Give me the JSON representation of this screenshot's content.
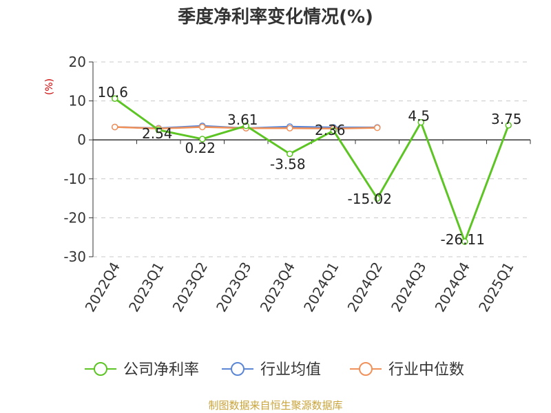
{
  "chart_data": {
    "type": "line",
    "title": "季度净利率变化情况(%)",
    "ylabel": "(%)",
    "xlabel": "",
    "ylim": [
      -30,
      20
    ],
    "yticks": [
      20,
      10,
      0,
      -10,
      -20,
      -30
    ],
    "categories": [
      "2022Q4",
      "2023Q1",
      "2023Q2",
      "2023Q3",
      "2023Q4",
      "2024Q1",
      "2024Q2",
      "2024Q3",
      "2024Q4",
      "2025Q1"
    ],
    "grid": true,
    "legend_position": "bottom",
    "series": [
      {
        "name": "公司净利率",
        "color": "#5cc423",
        "values": [
          10.6,
          2.54,
          0.22,
          3.61,
          -3.58,
          2.36,
          -15.02,
          4.5,
          -26.11,
          3.75
        ],
        "labels": [
          "10.6",
          "2.54",
          "0.22",
          "3.61",
          "-3.58",
          "2.36",
          "-15.02",
          "4.5",
          "-26.11",
          "3.75"
        ]
      },
      {
        "name": "行业均值",
        "color": "#5b86d6",
        "values": [
          3.3,
          3.0,
          3.6,
          3.0,
          3.4,
          3.2,
          3.2,
          null,
          null,
          null
        ]
      },
      {
        "name": "行业中位数",
        "color": "#f0915a",
        "values": [
          3.3,
          2.9,
          3.3,
          3.0,
          3.0,
          2.9,
          3.1,
          null,
          null,
          null
        ]
      }
    ]
  },
  "source": "制图数据来自恒生聚源数据库"
}
